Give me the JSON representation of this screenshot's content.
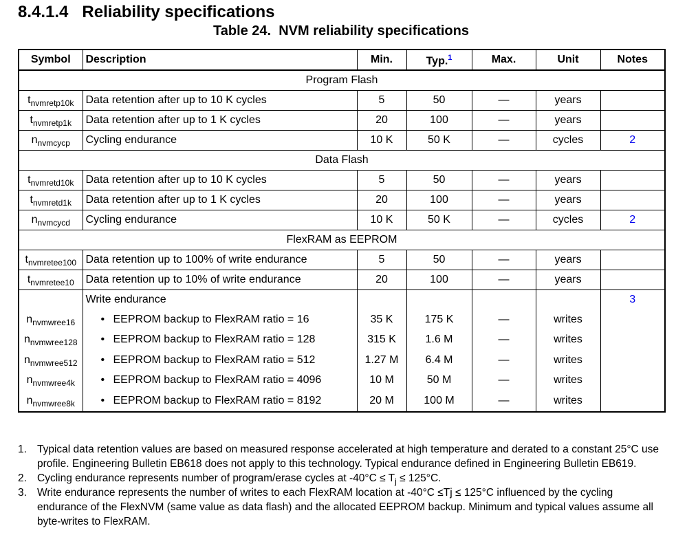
{
  "heading": "8.4.1.4   Reliability specifications",
  "caption": "Table 24.  NVM reliability specifications",
  "columns": {
    "symbol": "Symbol",
    "description": "Description",
    "min": "Min.",
    "typ": "Typ.",
    "typ_sup": "1",
    "max": "Max.",
    "unit": "Unit",
    "notes": "Notes"
  },
  "sections": [
    {
      "title": "Program Flash",
      "rows": [
        {
          "sym": "t",
          "sub": "nvmretp10k",
          "desc": "Data retention after up to 10 K cycles",
          "min": "5",
          "typ": "50",
          "max": "—",
          "unit": "years",
          "note": ""
        },
        {
          "sym": "t",
          "sub": "nvmretp1k",
          "desc": "Data retention after up to 1 K cycles",
          "min": "20",
          "typ": "100",
          "max": "—",
          "unit": "years",
          "note": ""
        },
        {
          "sym": "n",
          "sub": "nvmcycp",
          "desc": "Cycling endurance",
          "min": "10 K",
          "typ": "50 K",
          "max": "—",
          "unit": "cycles",
          "note": "2"
        }
      ]
    },
    {
      "title": "Data Flash",
      "rows": [
        {
          "sym": "t",
          "sub": "nvmretd10k",
          "desc": "Data retention after up to 10 K cycles",
          "min": "5",
          "typ": "50",
          "max": "—",
          "unit": "years",
          "note": ""
        },
        {
          "sym": "t",
          "sub": "nvmretd1k",
          "desc": "Data retention after up to 1 K cycles",
          "min": "20",
          "typ": "100",
          "max": "—",
          "unit": "years",
          "note": ""
        },
        {
          "sym": "n",
          "sub": "nvmcycd",
          "desc": "Cycling endurance",
          "min": "10 K",
          "typ": "50 K",
          "max": "—",
          "unit": "cycles",
          "note": "2"
        }
      ]
    },
    {
      "title": "FlexRAM as EEPROM",
      "rows": [
        {
          "sym": "t",
          "sub": "nvmretee100",
          "desc": "Data retention up to 100% of write endurance",
          "min": "5",
          "typ": "50",
          "max": "—",
          "unit": "years",
          "note": ""
        },
        {
          "sym": "t",
          "sub": "nvmretee10",
          "desc": "Data retention up to 10% of write endurance",
          "min": "20",
          "typ": "100",
          "max": "—",
          "unit": "years",
          "note": ""
        }
      ]
    }
  ],
  "write_endurance": {
    "label": "Write endurance",
    "note": "3",
    "bullet": "•",
    "rows": [
      {
        "sym": "n",
        "sub": "nvmwree16",
        "desc": "EEPROM backup to FlexRAM ratio = 16",
        "min": "35 K",
        "typ": "175 K",
        "max": "—",
        "unit": "writes"
      },
      {
        "sym": "n",
        "sub": "nvmwree128",
        "desc": "EEPROM backup to FlexRAM ratio = 128",
        "min": "315 K",
        "typ": "1.6 M",
        "max": "—",
        "unit": "writes"
      },
      {
        "sym": "n",
        "sub": "nvmwree512",
        "desc": "EEPROM backup to FlexRAM ratio = 512",
        "min": "1.27 M",
        "typ": "6.4 M",
        "max": "—",
        "unit": "writes"
      },
      {
        "sym": "n",
        "sub": "nvmwree4k",
        "desc": "EEPROM backup to FlexRAM ratio = 4096",
        "min": "10 M",
        "typ": "50 M",
        "max": "—",
        "unit": "writes"
      },
      {
        "sym": "n",
        "sub": "nvmwree8k",
        "desc": "EEPROM backup to FlexRAM ratio = 8192",
        "min": "20 M",
        "typ": "100 M",
        "max": "—",
        "unit": "writes"
      }
    ]
  },
  "footnotes": [
    {
      "num": "1.",
      "text": "Typical data retention values are based on measured response accelerated at high temperature and derated to a constant 25°C use profile. Engineering Bulletin EB618 does not apply to this technology. Typical endurance defined in Engineering Bulletin EB619."
    },
    {
      "num": "2.",
      "text_a": "Cycling endurance represents number of program/erase cycles at -40°C ≤ T",
      "sub": "j",
      "text_b": " ≤ 125°C."
    },
    {
      "num": "3.",
      "text": "Write endurance represents the number of writes to each FlexRAM location at -40°C ≤Tj ≤ 125°C influenced by the cycling endurance of the FlexNVM (same value as data flash) and the allocated EEPROM backup. Minimum and typical values assume all byte-writes to FlexRAM."
    }
  ]
}
